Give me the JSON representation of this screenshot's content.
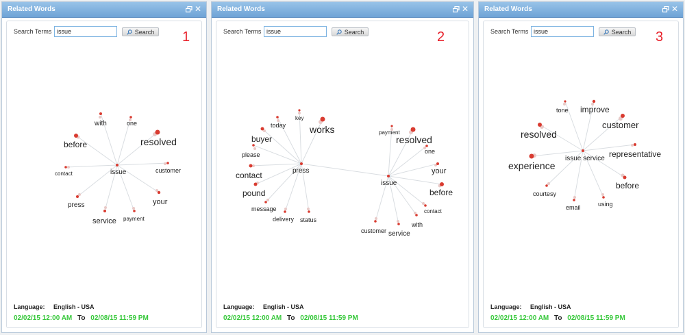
{
  "panels": [
    {
      "title": "Related Words",
      "number": "1",
      "search_label": "Search Terms",
      "search_value": "issue",
      "search_button": "Search",
      "language_label": "Language:",
      "language_value": "English - USA",
      "date_from": "02/02/15 12:00 AM",
      "date_to_label": "To",
      "date_to": "02/08/15 11:59 PM",
      "words": [
        "issue",
        "with",
        "one",
        "before",
        "resolved",
        "contact",
        "customer",
        "press",
        "your",
        "service",
        "payment"
      ]
    },
    {
      "title": "Related Words",
      "number": "2",
      "search_label": "Search Terms",
      "search_value": "issue",
      "search_button": "Search",
      "language_label": "Language:",
      "language_value": "English - USA",
      "date_from": "02/02/15 12:00 AM",
      "date_to_label": "To",
      "date_to": "02/08/15 11:59 PM",
      "words": [
        "key",
        "today",
        "works",
        "buyer",
        "please",
        "press",
        "contact",
        "pound",
        "message",
        "delivery",
        "status",
        "payment",
        "resolved",
        "one",
        "your",
        "issue",
        "before",
        "contact",
        "with",
        "customer",
        "service"
      ]
    },
    {
      "title": "Related Words",
      "number": "3",
      "search_label": "Search Terms",
      "search_value": "issue",
      "search_button": "Search",
      "language_label": "Language:",
      "language_value": "English - USA",
      "date_from": "02/02/15 12:00 AM",
      "date_to_label": "To",
      "date_to": "02/08/15 11:59 PM",
      "words": [
        "tone",
        "improve",
        "customer",
        "resolved",
        "issue service",
        "representative",
        "experience",
        "before",
        "courtesy",
        "email",
        "using"
      ]
    }
  ],
  "colors": {
    "accent_blue": "#6ea3d6",
    "node_red": "#d93b30",
    "date_green": "#36c83a",
    "annotation_red": "#e8202a"
  }
}
